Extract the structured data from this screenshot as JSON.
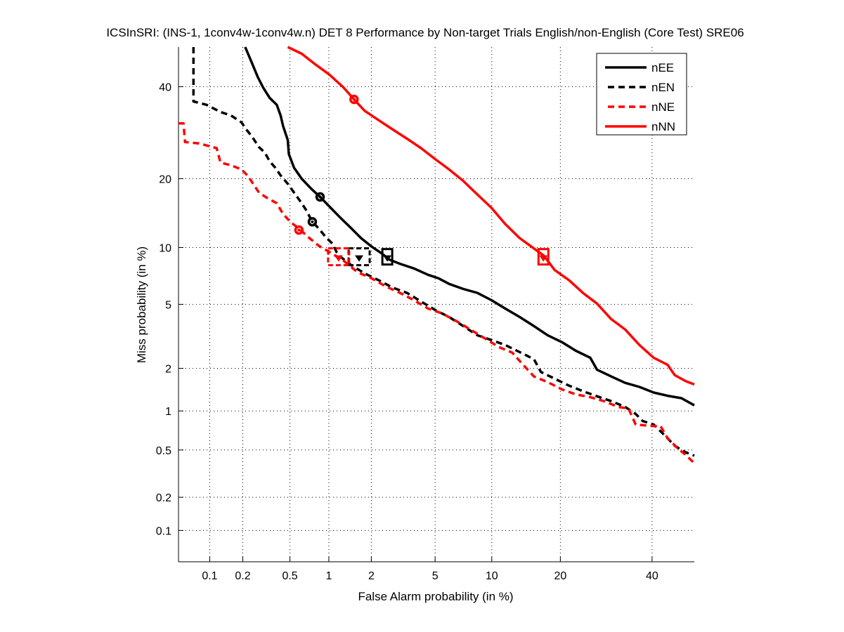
{
  "chart_data": {
    "type": "line",
    "scale": "probit (DET normal deviate)",
    "title": "ICSInSRI: (INS-1, 1conv4w-1conv4w.n) DET 8 Performance by Non-target Trials English/non-English (Core Test) SRE06",
    "xlabel": "False Alarm probability (in %)",
    "ylabel": "Miss probability (in %)",
    "xlim": [
      0.05,
      50.7
    ],
    "ylim": [
      0.05,
      50
    ],
    "grid": true,
    "legend_position": "top-right",
    "xticks": [
      {
        "v": 0.1,
        "label": "0.1"
      },
      {
        "v": 0.2,
        "label": "0.2"
      },
      {
        "v": 0.5,
        "label": "0.5"
      },
      {
        "v": 1,
        "label": "1"
      },
      {
        "v": 2,
        "label": "2"
      },
      {
        "v": 5,
        "label": "5"
      },
      {
        "v": 10,
        "label": "10"
      },
      {
        "v": 20,
        "label": "20"
      },
      {
        "v": 40,
        "label": "40"
      }
    ],
    "yticks": [
      {
        "v": 0.1,
        "label": "0.1"
      },
      {
        "v": 0.2,
        "label": "0.2"
      },
      {
        "v": 0.5,
        "label": "0.5"
      },
      {
        "v": 1,
        "label": "1"
      },
      {
        "v": 2,
        "label": "2"
      },
      {
        "v": 5,
        "label": "5"
      },
      {
        "v": 10,
        "label": "10"
      },
      {
        "v": 20,
        "label": "20"
      },
      {
        "v": 40,
        "label": "40"
      }
    ],
    "series": [
      {
        "name": "nEE",
        "color": "#000000",
        "style": "solid",
        "x": [
          0.21,
          0.24,
          0.27,
          0.3,
          0.34,
          0.39,
          0.42,
          0.44,
          0.48,
          0.49,
          0.54,
          0.62,
          0.74,
          0.86,
          1.01,
          1.21,
          1.44,
          1.7,
          2.01,
          2.37,
          2.63,
          3.07,
          3.75,
          4.55,
          5.24,
          6.0,
          7.16,
          8.47,
          9.97,
          11.6,
          13.5,
          15.6,
          17.8,
          20.3,
          22.9,
          25.8,
          27.2,
          30.3,
          33.5,
          36.9,
          40.4,
          43.9,
          47.4,
          50.7
        ],
        "y": [
          50,
          46.0,
          42.4,
          39.8,
          37.3,
          35.6,
          33.1,
          30.7,
          27.6,
          24.7,
          22.0,
          20.0,
          18.2,
          16.9,
          15.4,
          13.8,
          12.4,
          11.1,
          10.1,
          9.3,
          8.7,
          8.3,
          7.85,
          7.27,
          6.96,
          6.5,
          6.1,
          5.8,
          5.28,
          4.73,
          4.22,
          3.72,
          3.27,
          2.96,
          2.61,
          2.35,
          1.96,
          1.76,
          1.59,
          1.49,
          1.36,
          1.29,
          1.24,
          1.1
        ],
        "markers": {
          "circle": {
            "x": 0.86,
            "y": 16.9
          },
          "square": {
            "x": 2.55,
            "y": 9.0
          }
        }
      },
      {
        "name": "nEN",
        "color": "#000000",
        "style": "dashed",
        "x": [
          0.07,
          0.07,
          0.093,
          0.126,
          0.157,
          0.195,
          0.215,
          0.24,
          0.277,
          0.31,
          0.34,
          0.38,
          0.42,
          0.48,
          0.54,
          0.62,
          0.67,
          0.75,
          0.84,
          0.95,
          1.07,
          1.14,
          1.24,
          1.44,
          1.8,
          2.24,
          2.77,
          3.4,
          4.14,
          5.0,
          6.0,
          7.16,
          8.47,
          9.97,
          11.6,
          13.5,
          15.6,
          16.7,
          19.0,
          21.6,
          24.3,
          27.2,
          30.3,
          33.5,
          36.0,
          37.7,
          40.4,
          43.0,
          45.7,
          48.4,
          50.7
        ],
        "y": [
          50,
          36.4,
          35.6,
          33.9,
          33.1,
          31.5,
          29.9,
          28.4,
          26.1,
          25.0,
          23.3,
          22.0,
          20.6,
          19.1,
          17.6,
          15.9,
          14.9,
          13.2,
          12.3,
          11.2,
          10.4,
          9.5,
          8.9,
          8.2,
          7.4,
          6.8,
          6.2,
          5.8,
          5.19,
          4.64,
          4.22,
          3.72,
          3.27,
          3.05,
          2.84,
          2.56,
          2.3,
          1.89,
          1.7,
          1.52,
          1.39,
          1.28,
          1.18,
          1.07,
          0.95,
          0.84,
          0.79,
          0.66,
          0.54,
          0.48,
          0.45
        ],
        "markers": {
          "circle": {
            "x": 0.75,
            "y": 13.2
          },
          "square": {
            "x": 1.65,
            "y": 9.0
          }
        }
      },
      {
        "name": "nNE",
        "color": "#ff0000",
        "style": "dashed",
        "x": [
          0.05,
          0.056,
          0.058,
          0.079,
          0.116,
          0.126,
          0.157,
          0.195,
          0.224,
          0.248,
          0.277,
          0.32,
          0.39,
          0.44,
          0.51,
          0.58,
          0.7,
          0.84,
          1.01,
          1.28,
          1.61,
          2.01,
          2.49,
          3.07,
          3.75,
          4.55,
          5.48,
          6.57,
          7.8,
          9.2,
          10.8,
          12.5,
          14.0,
          15.6,
          17.8,
          20.3,
          22.9,
          25.8,
          28.7,
          31.9,
          34.3,
          36.0,
          40.4,
          42.1,
          43.9,
          46.6,
          48.4,
          50.7
        ],
        "y": [
          31.3,
          31.3,
          27.2,
          26.9,
          25.9,
          23.0,
          22.5,
          21.7,
          20.4,
          19.0,
          17.6,
          16.8,
          15.9,
          14.3,
          13.1,
          12.4,
          11.2,
          10.2,
          9.5,
          8.6,
          7.5,
          6.96,
          6.3,
          5.8,
          5.28,
          4.73,
          4.43,
          3.99,
          3.55,
          3.14,
          2.76,
          2.54,
          2.11,
          1.76,
          1.61,
          1.43,
          1.32,
          1.26,
          1.18,
          1.07,
          1.04,
          0.79,
          0.77,
          0.77,
          0.62,
          0.51,
          0.46,
          0.39
        ],
        "markers": {
          "circle": {
            "x": 0.59,
            "y": 12.1
          },
          "square": {
            "x": 1.18,
            "y": 9.0
          }
        }
      },
      {
        "name": "nNN",
        "color": "#ff0000",
        "style": "solid",
        "x": [
          0.48,
          0.62,
          0.79,
          1.01,
          1.28,
          1.52,
          1.8,
          2.24,
          2.77,
          3.4,
          4.14,
          5.0,
          6.0,
          7.16,
          8.47,
          9.97,
          11.6,
          13.5,
          15.6,
          17.2,
          19.0,
          21.6,
          24.3,
          27.2,
          30.3,
          33.5,
          36.9,
          40.4,
          43.9,
          45.7,
          48.4,
          50.7
        ],
        "y": [
          50,
          48.3,
          45.6,
          43.0,
          39.8,
          36.9,
          34.2,
          32.0,
          29.9,
          27.9,
          25.9,
          23.7,
          21.7,
          19.6,
          17.3,
          15.2,
          12.9,
          11.1,
          9.9,
          9.1,
          7.7,
          6.8,
          5.8,
          5.05,
          4.1,
          3.55,
          2.84,
          2.35,
          2.11,
          1.8,
          1.64,
          1.55
        ],
        "markers": {
          "circle": {
            "x": 1.52,
            "y": 36.9
          },
          "square": {
            "x": 17.1,
            "y": 9.0
          }
        }
      }
    ]
  }
}
